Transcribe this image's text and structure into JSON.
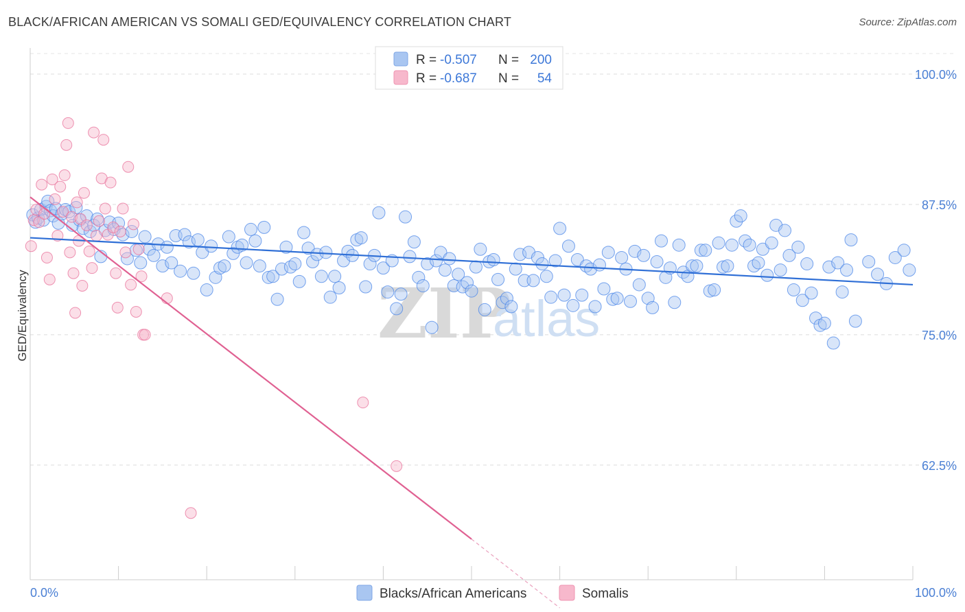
{
  "header": {
    "title": "BLACK/AFRICAN AMERICAN VS SOMALI GED/EQUIVALENCY CORRELATION CHART",
    "source": "Source: ZipAtlas.com"
  },
  "watermark": {
    "zip": "ZIP",
    "atlas": "atlas"
  },
  "legend": {
    "rows": [
      {
        "r_label": "R =",
        "r_value": "-0.507",
        "n_label": "N =",
        "n_value": "200",
        "color": "#a9c6f1"
      },
      {
        "r_label": "R =",
        "r_value": "-0.687",
        "n_label": "N =",
        "n_value": "54",
        "color": "#f7b8cc"
      }
    ]
  },
  "bottom_legend": {
    "items": [
      {
        "label": "Blacks/African Americans",
        "color": "#a9c6f1"
      },
      {
        "label": "Somalis",
        "color": "#f7b8cc"
      }
    ]
  },
  "chart_data": {
    "type": "scatter",
    "title": "BLACK/AFRICAN AMERICAN VS SOMALI GED/EQUIVALENCY CORRELATION CHART",
    "xlabel": "",
    "ylabel": "GED/Equivalency",
    "xlim": [
      0,
      100
    ],
    "ylim": [
      51.5,
      102.5
    ],
    "x_tick_labels": [
      "0.0%",
      "100.0%"
    ],
    "y_ticks": [
      62.5,
      75.0,
      87.5,
      100.0
    ],
    "y_tick_labels": [
      "62.5%",
      "75.0%",
      "87.5%",
      "100.0%"
    ],
    "grid": true,
    "legend_position": "top-center",
    "series": [
      {
        "name": "Blacks/African Americans",
        "color": "#4a86e8",
        "fill": "#a9c6f1",
        "regression": {
          "x": [
            0,
            100
          ],
          "y": [
            84.3,
            79.8
          ]
        },
        "points": [
          [
            0.3,
            86.5
          ],
          [
            0.6,
            85.8
          ],
          [
            0.9,
            86.2
          ],
          [
            1.2,
            87.0
          ],
          [
            1.5,
            86.0
          ],
          [
            1.8,
            87.3
          ],
          [
            2.0,
            87.8
          ],
          [
            2.3,
            86.9
          ],
          [
            2.6,
            86.4
          ],
          [
            2.9,
            87.1
          ],
          [
            3.2,
            85.7
          ],
          [
            3.6,
            86.6
          ],
          [
            4.0,
            87.0
          ],
          [
            4.4,
            86.8
          ],
          [
            4.8,
            85.5
          ],
          [
            5.2,
            87.2
          ],
          [
            5.6,
            86.0
          ],
          [
            6.0,
            85.2
          ],
          [
            6.4,
            86.4
          ],
          [
            6.8,
            84.9
          ],
          [
            7.2,
            85.5
          ],
          [
            7.6,
            86.1
          ],
          [
            8.0,
            82.5
          ],
          [
            8.5,
            85.0
          ],
          [
            9.0,
            85.8
          ],
          [
            9.5,
            85.1
          ],
          [
            10.0,
            85.7
          ],
          [
            10.5,
            84.6
          ],
          [
            11.0,
            82.3
          ],
          [
            11.5,
            84.9
          ],
          [
            12.0,
            83.1
          ],
          [
            12.5,
            81.9
          ],
          [
            13.0,
            84.4
          ],
          [
            13.5,
            83.2
          ],
          [
            14.0,
            82.6
          ],
          [
            14.5,
            83.7
          ],
          [
            15.0,
            81.6
          ],
          [
            15.5,
            83.4
          ],
          [
            16.0,
            81.9
          ],
          [
            16.5,
            84.5
          ],
          [
            17.0,
            81.1
          ],
          [
            17.5,
            84.6
          ],
          [
            18.0,
            83.9
          ],
          [
            18.5,
            80.9
          ],
          [
            19.0,
            84.1
          ],
          [
            19.5,
            82.9
          ],
          [
            20.0,
            79.3
          ],
          [
            20.5,
            83.5
          ],
          [
            21.0,
            80.5
          ],
          [
            21.5,
            81.4
          ],
          [
            22.0,
            81.6
          ],
          [
            22.5,
            84.4
          ],
          [
            23.0,
            82.8
          ],
          [
            23.5,
            83.4
          ],
          [
            24.0,
            83.6
          ],
          [
            24.5,
            81.9
          ],
          [
            25.0,
            85.1
          ],
          [
            25.5,
            84.0
          ],
          [
            26.0,
            81.6
          ],
          [
            26.5,
            85.3
          ],
          [
            27.0,
            80.5
          ],
          [
            27.5,
            80.6
          ],
          [
            28.0,
            78.4
          ],
          [
            28.5,
            81.3
          ],
          [
            29.0,
            83.4
          ],
          [
            29.5,
            81.5
          ],
          [
            30.0,
            81.8
          ],
          [
            30.5,
            80.1
          ],
          [
            31.0,
            84.8
          ],
          [
            31.5,
            83.3
          ],
          [
            32.0,
            82.0
          ],
          [
            32.5,
            82.7
          ],
          [
            33.0,
            80.6
          ],
          [
            33.5,
            82.9
          ],
          [
            34.0,
            78.6
          ],
          [
            34.5,
            80.6
          ],
          [
            35.0,
            79.5
          ],
          [
            35.5,
            82.1
          ],
          [
            36.0,
            83.0
          ],
          [
            36.5,
            82.6
          ],
          [
            37.0,
            84.1
          ],
          [
            37.5,
            84.3
          ],
          [
            38.0,
            79.6
          ],
          [
            38.5,
            81.8
          ],
          [
            39.0,
            82.6
          ],
          [
            39.5,
            86.7
          ],
          [
            40.0,
            81.4
          ],
          [
            40.5,
            79.1
          ],
          [
            41.0,
            82.1
          ],
          [
            41.5,
            77.5
          ],
          [
            42.0,
            78.9
          ],
          [
            42.5,
            86.3
          ],
          [
            43.0,
            82.5
          ],
          [
            43.5,
            83.9
          ],
          [
            44.0,
            80.5
          ],
          [
            44.5,
            79.7
          ],
          [
            45.0,
            81.8
          ],
          [
            45.5,
            75.7
          ],
          [
            46.0,
            82.1
          ],
          [
            46.5,
            82.9
          ],
          [
            47.0,
            81.2
          ],
          [
            47.5,
            82.3
          ],
          [
            48.0,
            79.7
          ],
          [
            48.5,
            80.8
          ],
          [
            49.0,
            79.6
          ],
          [
            49.5,
            80.0
          ],
          [
            50.0,
            79.2
          ],
          [
            50.5,
            81.5
          ],
          [
            51.0,
            83.2
          ],
          [
            51.5,
            77.4
          ],
          [
            52.0,
            82.0
          ],
          [
            52.5,
            82.2
          ],
          [
            53.0,
            80.3
          ],
          [
            53.5,
            78.1
          ],
          [
            54.0,
            78.5
          ],
          [
            54.5,
            77.7
          ],
          [
            55.0,
            81.3
          ],
          [
            55.5,
            82.7
          ],
          [
            56.0,
            80.2
          ],
          [
            56.5,
            82.9
          ],
          [
            57.0,
            80.2
          ],
          [
            57.5,
            82.4
          ],
          [
            58.0,
            81.8
          ],
          [
            58.5,
            80.6
          ],
          [
            59.0,
            78.6
          ],
          [
            59.5,
            82.1
          ],
          [
            60.0,
            85.2
          ],
          [
            60.5,
            78.8
          ],
          [
            61.0,
            83.5
          ],
          [
            61.5,
            77.8
          ],
          [
            62.0,
            82.2
          ],
          [
            62.5,
            78.8
          ],
          [
            63.0,
            81.6
          ],
          [
            63.5,
            81.3
          ],
          [
            64.0,
            77.7
          ],
          [
            64.5,
            81.7
          ],
          [
            65.0,
            79.4
          ],
          [
            65.5,
            82.9
          ],
          [
            66.0,
            78.4
          ],
          [
            66.5,
            78.5
          ],
          [
            67.0,
            82.4
          ],
          [
            67.5,
            81.3
          ],
          [
            68.0,
            78.2
          ],
          [
            68.5,
            83.0
          ],
          [
            69.0,
            79.8
          ],
          [
            69.5,
            82.6
          ],
          [
            70.0,
            78.5
          ],
          [
            70.5,
            77.6
          ],
          [
            71.0,
            82.0
          ],
          [
            71.5,
            84.0
          ],
          [
            72.0,
            80.5
          ],
          [
            72.5,
            81.4
          ],
          [
            73.0,
            78.1
          ],
          [
            73.5,
            83.6
          ],
          [
            74.0,
            81.0
          ],
          [
            74.5,
            80.6
          ],
          [
            75.0,
            81.6
          ],
          [
            75.5,
            81.6
          ],
          [
            76.0,
            83.1
          ],
          [
            76.5,
            83.1
          ],
          [
            77.0,
            79.2
          ],
          [
            77.5,
            79.3
          ],
          [
            78.0,
            83.8
          ],
          [
            78.5,
            81.5
          ],
          [
            79.0,
            81.6
          ],
          [
            79.5,
            83.6
          ],
          [
            80.0,
            85.9
          ],
          [
            80.5,
            86.4
          ],
          [
            81.0,
            84.0
          ],
          [
            81.5,
            83.6
          ],
          [
            82.0,
            81.6
          ],
          [
            82.5,
            81.9
          ],
          [
            83.0,
            83.2
          ],
          [
            83.5,
            80.7
          ],
          [
            84.0,
            83.8
          ],
          [
            84.5,
            85.5
          ],
          [
            85.0,
            81.2
          ],
          [
            85.5,
            85.0
          ],
          [
            86.0,
            82.6
          ],
          [
            86.5,
            79.3
          ],
          [
            87.0,
            83.4
          ],
          [
            87.5,
            78.3
          ],
          [
            88.0,
            81.8
          ],
          [
            88.5,
            79.0
          ],
          [
            89.0,
            76.6
          ],
          [
            89.5,
            75.9
          ],
          [
            90.0,
            76.1
          ],
          [
            90.5,
            81.5
          ],
          [
            91.0,
            74.2
          ],
          [
            91.5,
            81.9
          ],
          [
            92.0,
            79.1
          ],
          [
            92.5,
            81.2
          ],
          [
            93.0,
            84.1
          ],
          [
            93.5,
            76.3
          ],
          [
            95.0,
            82.0
          ],
          [
            96.0,
            80.8
          ],
          [
            97.0,
            79.9
          ],
          [
            98.0,
            82.4
          ],
          [
            99.0,
            83.1
          ],
          [
            99.6,
            81.2
          ]
        ]
      },
      {
        "name": "Somalis",
        "color": "#e8709a",
        "fill": "#f7b8cc",
        "regression": {
          "x": [
            0,
            50
          ],
          "y": [
            88.2,
            55.4
          ]
        },
        "regression_dashed_extension": {
          "x": [
            50,
            60
          ],
          "y": [
            55.4,
            48.8
          ]
        },
        "points": [
          [
            0.1,
            83.5
          ],
          [
            0.4,
            86.0
          ],
          [
            0.7,
            87.0
          ],
          [
            1.0,
            85.8
          ],
          [
            1.3,
            89.4
          ],
          [
            1.6,
            86.6
          ],
          [
            1.9,
            82.4
          ],
          [
            2.2,
            80.3
          ],
          [
            2.5,
            89.9
          ],
          [
            2.8,
            88.0
          ],
          [
            3.1,
            84.5
          ],
          [
            3.4,
            89.2
          ],
          [
            3.7,
            86.8
          ],
          [
            3.9,
            90.3
          ],
          [
            4.1,
            93.2
          ],
          [
            4.3,
            95.3
          ],
          [
            4.5,
            82.9
          ],
          [
            4.7,
            86.3
          ],
          [
            4.9,
            80.9
          ],
          [
            5.1,
            77.1
          ],
          [
            5.3,
            87.7
          ],
          [
            5.5,
            84.0
          ],
          [
            5.7,
            86.1
          ],
          [
            5.9,
            79.7
          ],
          [
            6.1,
            88.6
          ],
          [
            6.4,
            85.5
          ],
          [
            6.7,
            83.0
          ],
          [
            7.0,
            81.4
          ],
          [
            7.2,
            94.4
          ],
          [
            7.5,
            84.5
          ],
          [
            7.8,
            85.9
          ],
          [
            8.1,
            90.0
          ],
          [
            8.3,
            93.7
          ],
          [
            8.5,
            87.1
          ],
          [
            8.8,
            84.6
          ],
          [
            9.1,
            89.6
          ],
          [
            9.4,
            85.3
          ],
          [
            9.7,
            80.9
          ],
          [
            9.9,
            77.6
          ],
          [
            10.2,
            84.9
          ],
          [
            10.5,
            87.1
          ],
          [
            10.8,
            82.9
          ],
          [
            11.1,
            91.1
          ],
          [
            11.4,
            79.8
          ],
          [
            11.7,
            85.6
          ],
          [
            12.0,
            77.2
          ],
          [
            12.3,
            83.2
          ],
          [
            12.6,
            80.6
          ],
          [
            12.8,
            75.0
          ],
          [
            13.0,
            75.0
          ],
          [
            15.5,
            78.5
          ],
          [
            18.2,
            57.9
          ],
          [
            37.7,
            68.5
          ],
          [
            41.5,
            62.4
          ]
        ]
      }
    ]
  }
}
